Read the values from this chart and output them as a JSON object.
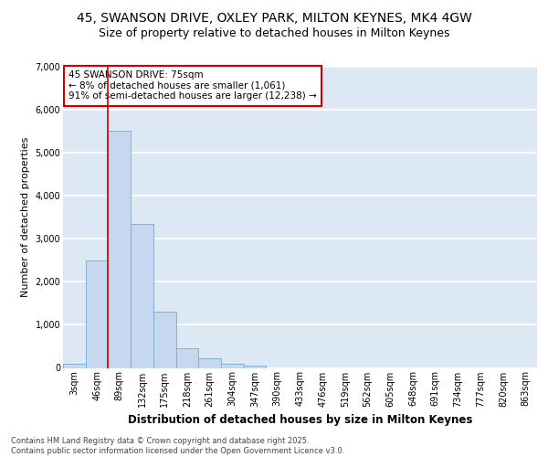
{
  "title_line1": "45, SWANSON DRIVE, OXLEY PARK, MILTON KEYNES, MK4 4GW",
  "title_line2": "Size of property relative to detached houses in Milton Keynes",
  "xlabel": "Distribution of detached houses by size in Milton Keynes",
  "ylabel": "Number of detached properties",
  "categories": [
    "3sqm",
    "46sqm",
    "89sqm",
    "132sqm",
    "175sqm",
    "218sqm",
    "261sqm",
    "304sqm",
    "347sqm",
    "390sqm",
    "433sqm",
    "476sqm",
    "519sqm",
    "562sqm",
    "605sqm",
    "648sqm",
    "691sqm",
    "734sqm",
    "777sqm",
    "820sqm",
    "863sqm"
  ],
  "values": [
    100,
    2500,
    5500,
    3350,
    1300,
    450,
    220,
    100,
    50,
    0,
    0,
    0,
    0,
    0,
    0,
    0,
    0,
    0,
    0,
    0,
    0
  ],
  "bar_color": "#c5d8f0",
  "bar_edgecolor": "#7aaad0",
  "vline_x_bar": 1.5,
  "vline_color": "#cc0000",
  "annotation_text": "45 SWANSON DRIVE: 75sqm\n← 8% of detached houses are smaller (1,061)\n91% of semi-detached houses are larger (12,238) →",
  "annotation_box_facecolor": "#ffffff",
  "annotation_box_edgecolor": "#cc0000",
  "ylim": [
    0,
    7000
  ],
  "yticks": [
    0,
    1000,
    2000,
    3000,
    4000,
    5000,
    6000,
    7000
  ],
  "background_color": "#dde8f5",
  "grid_color": "#ffffff",
  "footnote": "Contains HM Land Registry data © Crown copyright and database right 2025.\nContains public sector information licensed under the Open Government Licence v3.0.",
  "title_fontsize": 10,
  "subtitle_fontsize": 9,
  "axis_label_fontsize": 8.5,
  "tick_fontsize": 7,
  "annotation_fontsize": 7.5,
  "ylabel_fontsize": 8
}
